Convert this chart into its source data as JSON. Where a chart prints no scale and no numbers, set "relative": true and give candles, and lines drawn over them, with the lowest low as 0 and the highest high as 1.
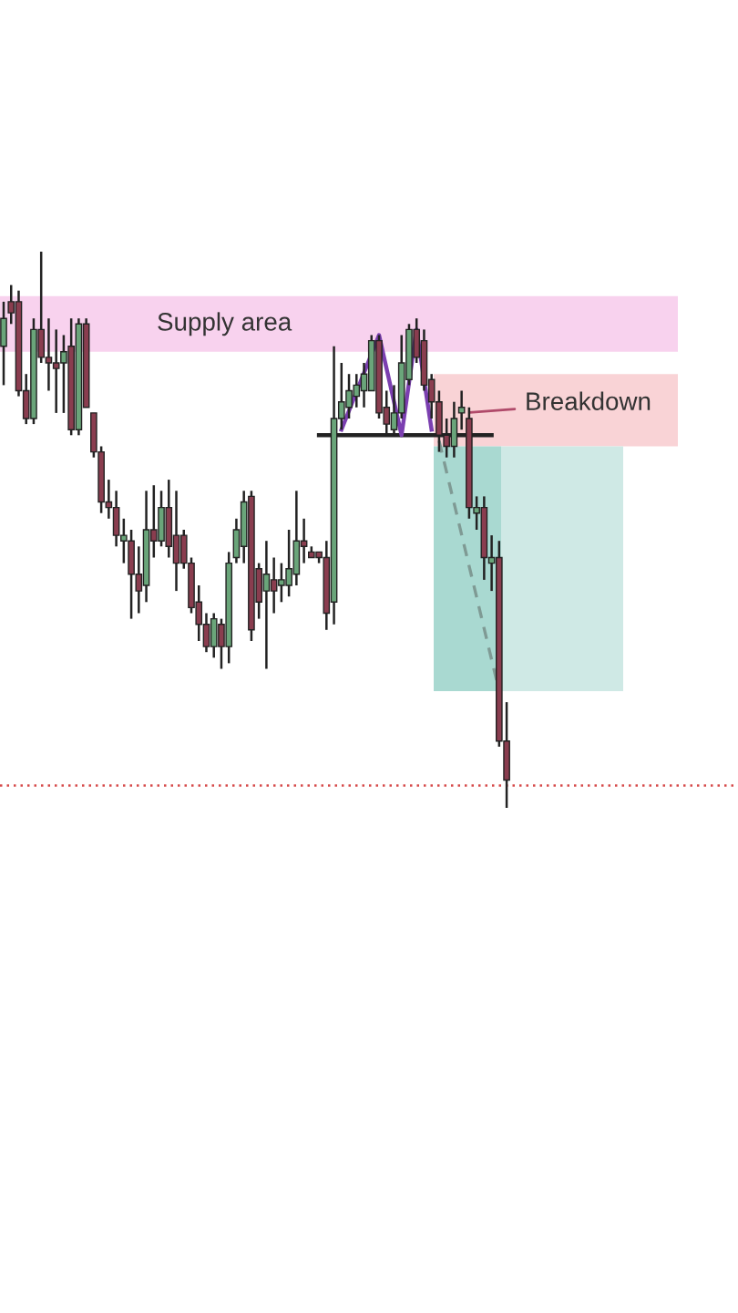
{
  "chart_data": {
    "type": "candlestick",
    "relative": true,
    "categories": [
      null,
      null,
      null,
      null,
      null,
      null,
      null,
      null,
      null,
      null,
      null,
      null,
      null,
      null,
      null,
      null,
      null,
      null,
      null,
      null,
      null,
      null,
      null,
      null,
      null,
      null,
      null,
      null,
      null,
      null,
      null,
      null,
      null,
      null,
      null,
      null,
      null,
      null,
      null,
      null,
      null,
      null,
      null,
      null,
      null,
      null,
      null,
      null,
      null,
      null,
      null,
      null,
      null,
      null,
      null,
      null,
      null,
      null,
      null,
      null,
      null,
      null,
      null,
      null,
      null,
      null,
      null,
      null,
      null,
      null,
      null,
      null,
      null,
      null,
      null,
      null,
      null,
      null,
      null,
      null,
      null,
      null,
      null,
      null,
      null,
      null,
      null,
      null,
      null,
      null,
      null
    ],
    "ohlc": [
      [
        0.83,
        0.91,
        0.76,
        0.88
      ],
      [
        0.91,
        0.94,
        0.87,
        0.89
      ],
      [
        0.91,
        0.93,
        0.74,
        0.75
      ],
      [
        0.75,
        0.78,
        0.69,
        0.7
      ],
      [
        0.7,
        0.88,
        0.69,
        0.86
      ],
      [
        0.86,
        1.0,
        0.8,
        0.81
      ],
      [
        0.81,
        0.88,
        0.75,
        0.8
      ],
      [
        0.8,
        0.86,
        0.71,
        0.79
      ],
      [
        0.8,
        0.85,
        0.71,
        0.82
      ],
      [
        0.83,
        0.88,
        0.67,
        0.68
      ],
      [
        0.68,
        0.88,
        0.67,
        0.87
      ],
      [
        0.87,
        0.88,
        0.72,
        0.72
      ],
      [
        0.71,
        0.71,
        0.63,
        0.64
      ],
      [
        0.64,
        0.65,
        0.53,
        0.55
      ],
      [
        0.55,
        0.59,
        0.52,
        0.54
      ],
      [
        0.54,
        0.57,
        0.47,
        0.49
      ],
      [
        0.48,
        0.52,
        0.44,
        0.49
      ],
      [
        0.48,
        0.5,
        0.34,
        0.42
      ],
      [
        0.42,
        0.47,
        0.35,
        0.39
      ],
      [
        0.4,
        0.57,
        0.37,
        0.5
      ],
      [
        0.5,
        0.58,
        0.45,
        0.48
      ],
      [
        0.48,
        0.57,
        0.47,
        0.54
      ],
      [
        0.54,
        0.59,
        0.45,
        0.47
      ],
      [
        0.49,
        0.57,
        0.39,
        0.44
      ],
      [
        0.49,
        0.5,
        0.43,
        0.44
      ],
      [
        0.44,
        0.45,
        0.35,
        0.36
      ],
      [
        0.37,
        0.4,
        0.3,
        0.33
      ],
      [
        0.33,
        0.35,
        0.28,
        0.29
      ],
      [
        0.29,
        0.35,
        0.27,
        0.34
      ],
      [
        0.33,
        0.34,
        0.25,
        0.29
      ],
      [
        0.29,
        0.46,
        0.26,
        0.44
      ],
      [
        0.45,
        0.52,
        0.44,
        0.5
      ],
      [
        0.47,
        0.57,
        0.44,
        0.55
      ],
      [
        0.56,
        0.57,
        0.3,
        0.32
      ],
      [
        0.43,
        0.44,
        0.34,
        0.37
      ],
      [
        0.39,
        0.48,
        0.25,
        0.42
      ],
      [
        0.41,
        0.45,
        0.35,
        0.39
      ],
      [
        0.4,
        0.44,
        0.37,
        0.41
      ],
      [
        0.4,
        0.5,
        0.38,
        0.43
      ],
      [
        0.42,
        0.57,
        0.4,
        0.48
      ],
      [
        0.48,
        0.52,
        0.44,
        0.47
      ],
      [
        0.46,
        0.47,
        0.45,
        0.45
      ],
      [
        0.46,
        0.46,
        0.44,
        0.45
      ],
      [
        0.45,
        0.48,
        0.32,
        0.35
      ],
      [
        0.37,
        0.83,
        0.33,
        0.7
      ],
      [
        0.7,
        0.8,
        0.68,
        0.73
      ],
      [
        0.72,
        0.78,
        0.7,
        0.75
      ],
      [
        0.74,
        0.78,
        0.72,
        0.76
      ],
      [
        0.75,
        0.8,
        0.72,
        0.78
      ],
      [
        0.75,
        0.85,
        0.75,
        0.84
      ],
      [
        0.84,
        0.85,
        0.7,
        0.71
      ],
      [
        0.72,
        0.75,
        0.67,
        0.69
      ],
      [
        0.68,
        0.76,
        0.67,
        0.71
      ],
      [
        0.71,
        0.85,
        0.7,
        0.8
      ],
      [
        0.77,
        0.87,
        0.76,
        0.86
      ],
      [
        0.86,
        0.88,
        0.8,
        0.81
      ],
      [
        0.84,
        0.86,
        0.75,
        0.76
      ],
      [
        0.77,
        0.78,
        0.7,
        0.73
      ],
      [
        0.73,
        0.75,
        0.64,
        0.67
      ],
      [
        0.67,
        0.7,
        0.63,
        0.65
      ],
      [
        0.65,
        0.73,
        0.63,
        0.7
      ],
      [
        0.71,
        0.75,
        0.68,
        0.72
      ],
      [
        0.7,
        0.72,
        0.52,
        0.54
      ],
      [
        0.53,
        0.56,
        0.5,
        0.54
      ],
      [
        0.54,
        0.56,
        0.41,
        0.45
      ],
      [
        0.44,
        0.49,
        0.39,
        0.45
      ],
      [
        0.45,
        0.48,
        0.11,
        0.12
      ],
      [
        0.12,
        0.19,
        0.0,
        0.05
      ],
      null,
      null,
      null,
      null,
      null,
      null,
      null,
      null,
      null,
      null,
      null,
      null,
      null,
      null,
      null,
      null,
      null,
      null,
      null,
      null,
      null,
      null,
      null
    ],
    "colors": [
      "#6aa57a",
      "#8a3d4f",
      "#8a3d4f",
      "#8a3d4f",
      "#6aa57a",
      "#8a3d4f",
      "#8a3d4f",
      "#8a3d4f",
      "#6aa57a",
      "#8a3d4f",
      "#6aa57a",
      "#8a3d4f",
      "#8a3d4f",
      "#8a3d4f",
      "#8a3d4f",
      "#8a3d4f",
      "#6aa57a",
      "#8a3d4f",
      "#8a3d4f",
      "#6aa57a",
      "#8a3d4f",
      "#6aa57a",
      "#8a3d4f",
      "#8a3d4f",
      "#8a3d4f",
      "#8a3d4f",
      "#8a3d4f",
      "#8a3d4f",
      "#6aa57a",
      "#8a3d4f",
      "#6aa57a",
      "#6aa57a",
      "#6aa57a",
      "#8a3d4f",
      "#8a3d4f",
      "#6aa57a",
      "#8a3d4f",
      "#6aa57a",
      "#6aa57a",
      "#6aa57a",
      "#8a3d4f",
      "#8a3d4f",
      "#8a3d4f",
      "#8a3d4f",
      "#6aa57a",
      "#6aa57a",
      "#6aa57a",
      "#6aa57a",
      "#6aa57a",
      "#6aa57a",
      "#8a3d4f",
      "#8a3d4f",
      "#6aa57a",
      "#6aa57a",
      "#6aa57a",
      "#8a3d4f",
      "#8a3d4f",
      "#8a3d4f",
      "#8a3d4f",
      "#8a3d4f",
      "#6aa57a",
      "#6aa57a",
      "#8a3d4f",
      "#6aa57a",
      "#8a3d4f",
      "#6aa57a",
      "#8a3d4f",
      "#8a3d4f",
      null,
      null,
      null,
      null,
      null,
      null,
      null,
      null,
      null,
      null,
      null,
      null,
      null,
      null,
      null,
      null,
      null,
      null,
      null,
      null,
      null,
      null,
      null
    ],
    "series": [
      {
        "type": "line",
        "color": "#222222",
        "values": [
          null,
          null,
          null,
          null,
          null,
          null,
          null,
          null,
          null,
          null,
          null,
          null,
          null,
          null,
          null,
          null,
          null,
          null,
          null,
          null,
          null,
          null,
          null,
          null,
          null,
          null,
          null,
          null,
          null,
          null,
          null,
          null,
          null,
          null,
          null,
          null,
          null,
          null,
          null,
          null,
          null,
          null,
          0.67,
          0.67,
          0.67,
          0.67,
          0.67,
          0.67,
          0.67,
          0.67,
          0.67,
          0.67,
          0.67,
          0.67,
          0.67,
          0.67,
          0.67,
          0.67,
          0.67,
          0.67,
          0.67,
          0.67,
          0.67,
          0.67,
          0.67,
          0.67,
          null,
          null,
          null,
          null,
          null,
          null,
          null,
          null,
          null,
          null,
          null,
          null,
          null,
          null,
          null,
          null,
          null,
          null,
          null,
          null,
          null,
          null,
          null,
          null,
          null
        ]
      },
      {
        "type": "line",
        "color": "#7b3fb0",
        "values": [
          null,
          null,
          null,
          null,
          null,
          null,
          null,
          null,
          null,
          null,
          null,
          null,
          null,
          null,
          null,
          null,
          null,
          null,
          null,
          null,
          null,
          null,
          null,
          null,
          null,
          null,
          null,
          null,
          null,
          null,
          null,
          null,
          null,
          null,
          null,
          null,
          null,
          null,
          null,
          null,
          null,
          null,
          null,
          null,
          null,
          0.68,
          null,
          null,
          null,
          null,
          0.85,
          null,
          null,
          0.67,
          null,
          0.86,
          null,
          0.68,
          null,
          null,
          null,
          null,
          null,
          null,
          null,
          null,
          null,
          null,
          null,
          null,
          null,
          null,
          null,
          null,
          null,
          null,
          null,
          null,
          null,
          null,
          null,
          null,
          null,
          null,
          null,
          null,
          null,
          null,
          null,
          null,
          null
        ]
      },
      {
        "type": "line",
        "color": "#7f9a94",
        "line_style": "dashed",
        "values": [
          null,
          null,
          null,
          null,
          null,
          null,
          null,
          null,
          null,
          null,
          null,
          null,
          null,
          null,
          null,
          null,
          null,
          null,
          null,
          null,
          null,
          null,
          null,
          null,
          null,
          null,
          null,
          null,
          null,
          null,
          null,
          null,
          null,
          null,
          null,
          null,
          null,
          null,
          null,
          null,
          null,
          null,
          null,
          null,
          null,
          null,
          null,
          null,
          null,
          null,
          null,
          null,
          null,
          null,
          null,
          null,
          null,
          null,
          0.66,
          null,
          null,
          null,
          null,
          null,
          null,
          null,
          0.21,
          null,
          null,
          null,
          null,
          null,
          null,
          null,
          null,
          null,
          null,
          null,
          null,
          null,
          null,
          null,
          null,
          null,
          null,
          null,
          null,
          null,
          null,
          null,
          null
        ]
      }
    ],
    "bands": [
      {
        "axis": "y",
        "from": 0.82,
        "to": 0.92,
        "label": "Supply area",
        "color": "#f8d2ee"
      },
      {
        "axis": "y",
        "from": 0.65,
        "to": 0.78,
        "color": "#f9d3d6"
      },
      {
        "axis": "y",
        "from": 0.21,
        "to": 0.65,
        "color": "#a9d9d1"
      },
      {
        "axis": "y",
        "from": 0.21,
        "to": 0.65,
        "color": "#cfe9e5"
      }
    ],
    "ref_lines": [
      {
        "axis": "y",
        "value": 0.04,
        "color": "#d64a4a",
        "line_style": "dotted"
      }
    ],
    "annotations": [
      "Breakdown"
    ]
  }
}
